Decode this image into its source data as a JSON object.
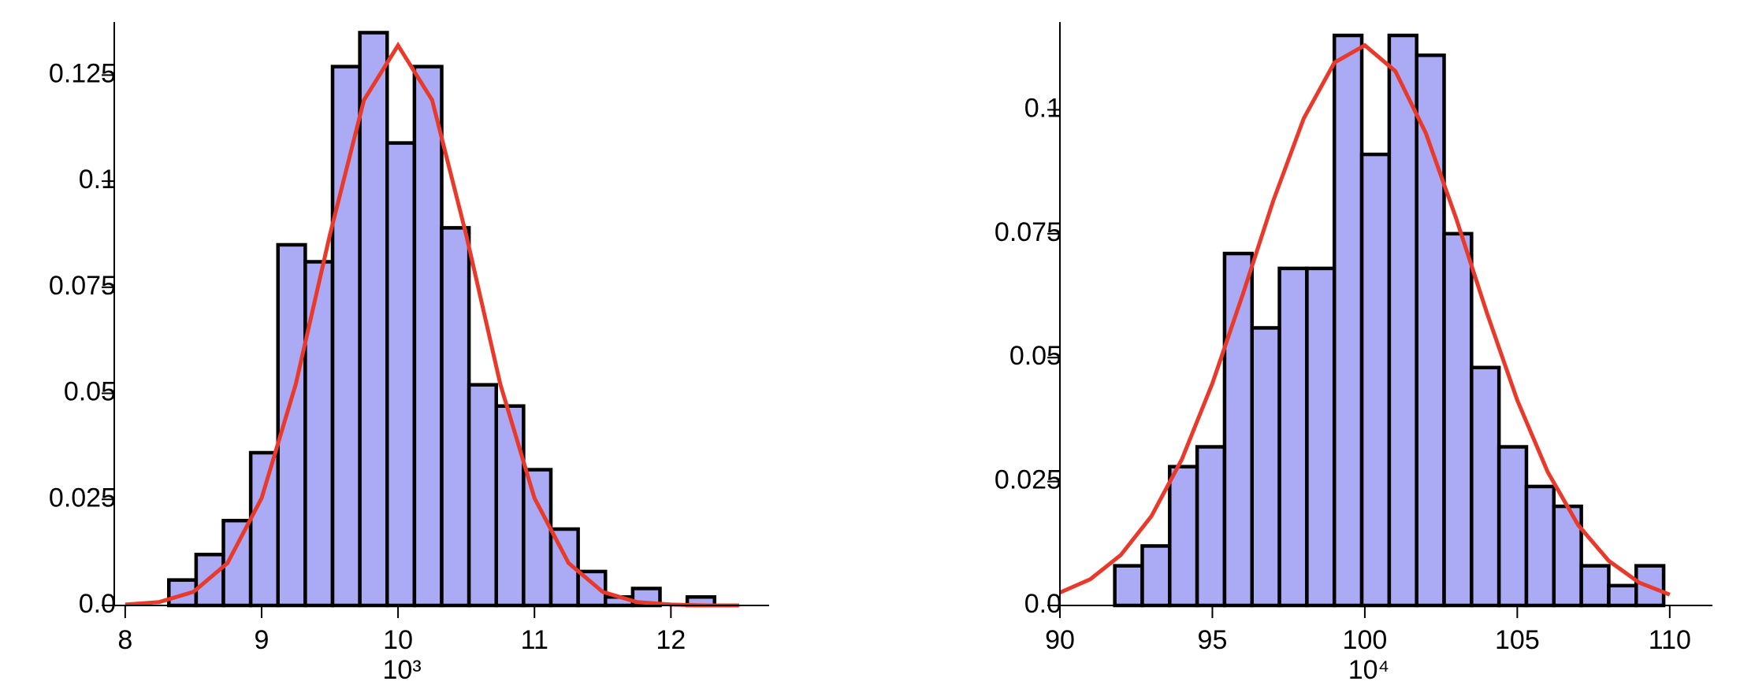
{
  "chart_data": [
    {
      "type": "histogram",
      "xlabel": "10³",
      "bins": [
        8.32,
        8.52,
        8.72,
        8.92,
        9.12,
        9.32,
        9.52,
        9.72,
        9.92,
        10.12,
        10.32,
        10.52,
        10.72,
        10.92,
        11.12,
        11.32,
        11.52,
        11.72,
        11.92,
        12.12,
        12.32
      ],
      "values": [
        0.006,
        0.012,
        0.02,
        0.036,
        0.085,
        0.081,
        0.127,
        0.135,
        0.109,
        0.127,
        0.089,
        0.052,
        0.047,
        0.032,
        0.018,
        0.008,
        0.002,
        0.004,
        0,
        0.002
      ],
      "color": "#aaaaf5",
      "edgecolor": "#000000",
      "curve": {
        "color": "#e8392a",
        "x": [
          8,
          8.25,
          8.5,
          8.75,
          9,
          9.25,
          9.5,
          9.75,
          10,
          10.25,
          10.5,
          10.75,
          11,
          11.25,
          11.5,
          11.75,
          12,
          12.25,
          12.5
        ],
        "values": [
          0.0002,
          0.0008,
          0.0032,
          0.01,
          0.0253,
          0.0521,
          0.0873,
          0.1191,
          0.132,
          0.1191,
          0.0873,
          0.0521,
          0.0253,
          0.01,
          0.0032,
          0.0008,
          0.0002,
          0,
          0
        ]
      },
      "xlim": [
        7.92,
        12.72
      ],
      "xticks": [
        8,
        9,
        10,
        11,
        12
      ],
      "ylim": [
        0,
        0.1375
      ],
      "yticks": [
        {
          "value": 0,
          "label": "0.0"
        },
        0.025,
        0.05,
        0.075,
        0.1,
        0.125
      ]
    },
    {
      "type": "histogram",
      "xlabel": "10⁴",
      "bins": [
        91.8,
        92.7,
        93.6,
        94.5,
        95.4,
        96.3,
        97.2,
        98.1,
        99,
        99.9,
        100.8,
        101.7,
        102.6,
        103.5,
        104.4,
        105.3,
        106.2,
        107.1,
        108,
        108.9,
        109.8
      ],
      "values": [
        0.008,
        0.012,
        0.028,
        0.032,
        0.071,
        0.056,
        0.068,
        0.068,
        0.115,
        0.091,
        0.115,
        0.111,
        0.075,
        0.048,
        0.032,
        0.024,
        0.02,
        0.008,
        0.004,
        0.008
      ],
      "color": "#aaaaf5",
      "edgecolor": "#000000",
      "curve": {
        "color": "#e8392a",
        "x": [
          90,
          91,
          92,
          93,
          94,
          95,
          96,
          97,
          98,
          99,
          100,
          101,
          102,
          103,
          104,
          105,
          106,
          107,
          108,
          109,
          110
        ],
        "values": [
          0.0026,
          0.0053,
          0.0102,
          0.018,
          0.0295,
          0.0448,
          0.0628,
          0.0817,
          0.0983,
          0.1095,
          0.113,
          0.1078,
          0.0953,
          0.078,
          0.0591,
          0.0414,
          0.0269,
          0.0162,
          0.009,
          0.0046,
          0.0022
        ]
      },
      "xlim": [
        90,
        111.4
      ],
      "xticks": [
        90,
        95,
        100,
        105,
        110
      ],
      "ylim": [
        0,
        0.1177
      ],
      "yticks": [
        {
          "value": 0,
          "label": "0.0"
        },
        0.025,
        0.05,
        0.075,
        0.1
      ]
    }
  ]
}
